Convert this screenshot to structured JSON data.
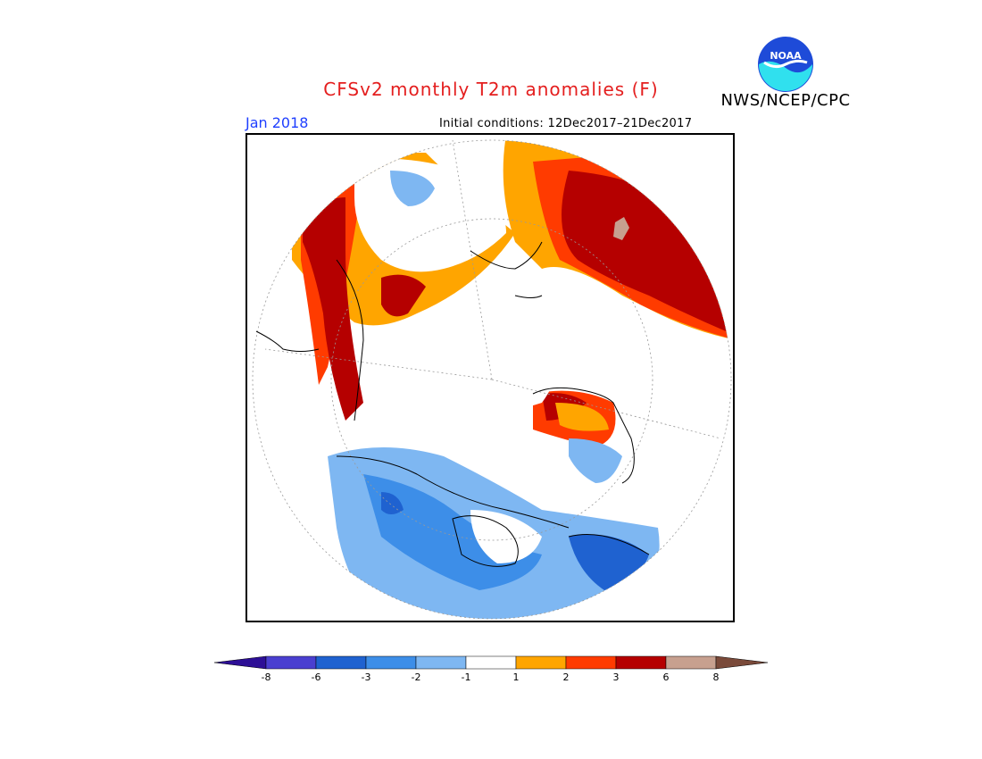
{
  "header": {
    "title": "CFSv2 monthly T2m anomalies (F)",
    "agency": "NWS/NCEP/CPC",
    "logo_text": "NOAA",
    "month": "Jan 2018",
    "initial_conditions": "Initial conditions: 12Dec2017–21Dec2017"
  },
  "colors": {
    "title": "#e41e1e",
    "month": "#1f3fff",
    "logo_blue": "#1e4bd8",
    "logo_cyan": "#30e0ee"
  },
  "map": {
    "projection": "north-polar-stereographic",
    "variable": "T2m anomaly",
    "units": "F"
  },
  "legend": {
    "ticks": [
      "-8",
      "-6",
      "-3",
      "-2",
      "-1",
      "1",
      "2",
      "3",
      "6",
      "8"
    ],
    "bins": [
      {
        "color": "#2d0f96"
      },
      {
        "color": "#4a3fd0"
      },
      {
        "color": "#1f62d0"
      },
      {
        "color": "#3d8ee8"
      },
      {
        "color": "#7eb7f2"
      },
      {
        "color": "#ffffff"
      },
      {
        "color": "#ffa500"
      },
      {
        "color": "#ff3b00"
      },
      {
        "color": "#b50000"
      },
      {
        "color": "#c7a08f"
      },
      {
        "color": "#7a4a3a"
      }
    ]
  }
}
